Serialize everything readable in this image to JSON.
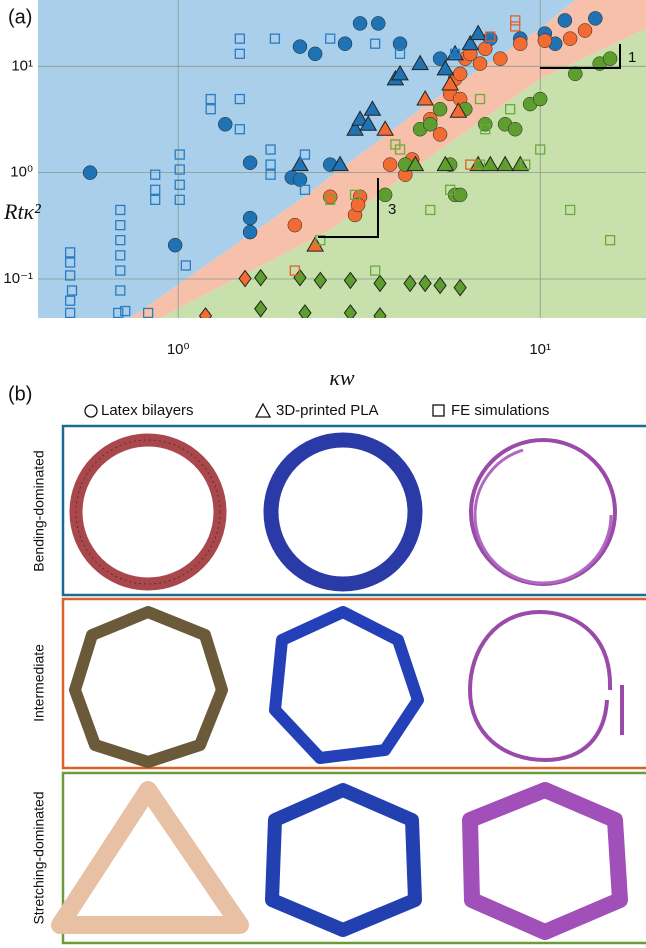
{
  "chart_data": {
    "type": "scatter",
    "panel_label": "(a)",
    "x_label": "κw",
    "y_label": "Rtκ²",
    "log_x": true,
    "log_y": true,
    "grid": true,
    "xlim": [
      0.41,
      19.6
    ],
    "ylim": [
      0.043,
      42
    ],
    "xticks": [
      {
        "value": 1,
        "label": "10⁰"
      },
      {
        "value": 10,
        "label": "10¹"
      }
    ],
    "yticks": [
      {
        "value": 0.1,
        "label": "10⁻¹"
      },
      {
        "value": 1,
        "label": "10⁰"
      },
      {
        "value": 10,
        "label": "10¹"
      }
    ],
    "annotations": [
      "3",
      "1"
    ],
    "regions": [
      {
        "color": "#a9cfea",
        "x": [
          0.737,
          2.17,
          4.66,
          10,
          12.5
        ],
        "y": [
          0.043,
          0.555,
          3.95,
          22.6,
          42
        ]
      },
      {
        "color": "#f7c0aa",
        "x": [
          0.89,
          2.63,
          5.3,
          10,
          19.6
        ],
        "y": [
          0.043,
          0.288,
          1.65,
          7.6,
          22.6
        ]
      },
      {
        "color": "#c8e0ab"
      }
    ],
    "series": [
      {
        "marker": "circle",
        "filled": true,
        "color": "#1f73b4",
        "x": [
          0.571,
          0.981,
          1.349,
          1.58,
          1.58,
          1.58,
          2.17,
          2.39,
          2.89,
          3.18,
          3.57,
          4.1,
          5.29,
          7.28,
          8.81,
          10.3,
          11.7,
          14.2,
          11.0,
          2.06,
          2.63,
          2.17
        ],
        "y": [
          1.0,
          0.208,
          2.85,
          1.24,
          0.374,
          0.276,
          15.3,
          13.1,
          16.3,
          25.3,
          25.3,
          16.3,
          11.8,
          18.2,
          18.2,
          20.3,
          27.0,
          28.2,
          16.3,
          0.9,
          1.19,
          0.86
        ]
      },
      {
        "marker": "circle",
        "filled": true,
        "color": "#f26b32",
        "x": [
          2.1,
          2.63,
          3.18,
          3.08,
          3.14,
          3.85,
          4.24,
          4.43,
          4.97,
          5.64,
          5.82,
          6.01,
          6.01,
          6.21,
          6.41,
          6.82,
          7.05,
          7.76,
          8.81,
          10.3,
          12.1,
          13.3,
          5.29
        ],
        "y": [
          0.321,
          0.593,
          0.593,
          0.4,
          0.497,
          1.19,
          0.957,
          1.33,
          3.18,
          5.49,
          7.61,
          8.49,
          4.92,
          11.8,
          13.1,
          10.6,
          14.6,
          11.8,
          16.3,
          17.4,
          18.2,
          21.7,
          2.29
        ]
      },
      {
        "marker": "circle",
        "filled": true,
        "color": "#5e9e2e",
        "x": [
          3.73,
          4.24,
          4.66,
          4.97,
          5.29,
          5.64,
          5.82,
          6.01,
          7.05,
          8.0,
          8.53,
          9.38,
          10.0,
          12.5,
          14.6,
          15.6,
          6.21
        ],
        "y": [
          0.618,
          1.19,
          2.56,
          2.85,
          3.95,
          1.19,
          0.618,
          0.618,
          2.85,
          2.85,
          2.56,
          4.41,
          4.92,
          8.49,
          10.6,
          11.8,
          3.95
        ]
      },
      {
        "marker": "triangle",
        "filled": true,
        "color": "#1f73b4",
        "x": [
          2.17,
          2.8,
          3.08,
          3.18,
          3.35,
          3.44,
          3.98,
          4.1,
          4.66,
          5.47,
          5.82,
          6.41,
          6.74
        ],
        "y": [
          1.19,
          1.19,
          2.56,
          3.18,
          2.85,
          3.95,
          7.61,
          8.49,
          10.6,
          9.46,
          13.1,
          16.3,
          20.3
        ]
      },
      {
        "marker": "triangle",
        "filled": true,
        "color": "#f26b32",
        "x": [
          2.39,
          3.73,
          4.81,
          5.64,
          5.94
        ],
        "y": [
          0.208,
          2.56,
          4.92,
          6.82,
          3.78
        ]
      },
      {
        "marker": "triangle",
        "filled": true,
        "color": "#5e9e2e",
        "x": [
          4.52,
          5.47,
          6.74,
          7.28,
          8.0,
          8.81
        ],
        "y": [
          1.19,
          1.19,
          1.19,
          1.19,
          1.19,
          1.19
        ]
      },
      {
        "marker": "diamond",
        "filled": true,
        "color": "#5e9e2e",
        "x": [
          1.69,
          2.17,
          2.47,
          2.99,
          3.61,
          4.37,
          4.81,
          5.29,
          6.01,
          1.69,
          2.24,
          2.99,
          3.61
        ],
        "y": [
          0.103,
          0.103,
          0.097,
          0.097,
          0.091,
          0.091,
          0.091,
          0.087,
          0.083,
          0.0525,
          0.048,
          0.048,
          0.045
        ]
      },
      {
        "marker": "diamond",
        "filled": true,
        "color": "#f26b32",
        "x": [
          1.19,
          1.53
        ],
        "y": [
          0.045,
          0.101
        ]
      },
      {
        "marker": "square",
        "filled": false,
        "color": "#2a7cc4",
        "x": [
          0.503,
          0.503,
          0.503,
          0.509,
          0.503,
          0.503,
          0.692,
          0.692,
          0.692,
          0.692,
          0.692,
          0.692,
          0.714,
          0.864,
          0.864,
          0.864,
          1.01,
          1.01,
          1.01,
          1.01,
          1.05,
          1.23,
          1.23,
          1.48,
          1.48,
          1.8,
          1.8,
          1.8,
          1.48,
          1.48,
          1.85,
          2.24,
          2.24,
          2.63,
          3.5,
          4.1,
          5.82,
          7.28,
          0.683,
          0.826
        ],
        "y": [
          0.178,
          0.143,
          0.108,
          0.078,
          0.0625,
          0.048,
          0.446,
          0.321,
          0.232,
          0.167,
          0.12,
          0.078,
          0.05,
          0.957,
          0.69,
          0.555,
          1.48,
          1.07,
          0.769,
          0.555,
          0.134,
          4.92,
          3.95,
          4.92,
          2.56,
          1.65,
          1.19,
          0.957,
          18.2,
          13.1,
          18.2,
          1.48,
          0.69,
          18.2,
          16.3,
          13.1,
          13.1,
          18.2,
          0.048,
          0.048
        ]
      },
      {
        "marker": "square",
        "filled": false,
        "color": "#6aab3a",
        "x": [
          2.47,
          2.63,
          3.08,
          3.5,
          3.98,
          4.1,
          4.97,
          5.64,
          6.82,
          6.82,
          7.05,
          8.26,
          9.09,
          10.0,
          12.1,
          15.6
        ],
        "y": [
          0.232,
          0.555,
          0.618,
          0.12,
          1.84,
          1.65,
          0.446,
          0.69,
          1.19,
          4.92,
          2.56,
          3.95,
          1.19,
          1.65,
          0.446,
          0.232
        ]
      },
      {
        "marker": "square",
        "filled": false,
        "color": "#e0602a",
        "x": [
          2.1,
          6.41,
          8.53,
          8.53,
          7.28
        ],
        "y": [
          0.12,
          1.19,
          23.7,
          27.0,
          19.0
        ]
      }
    ]
  },
  "panel_b": {
    "label": "(b)",
    "legend": [
      "Latex bilayers",
      "3D-printed PLA",
      "FE simulations"
    ],
    "rows": [
      "Bending-dominated",
      "Intermediate",
      "Stretching-dominated"
    ]
  }
}
